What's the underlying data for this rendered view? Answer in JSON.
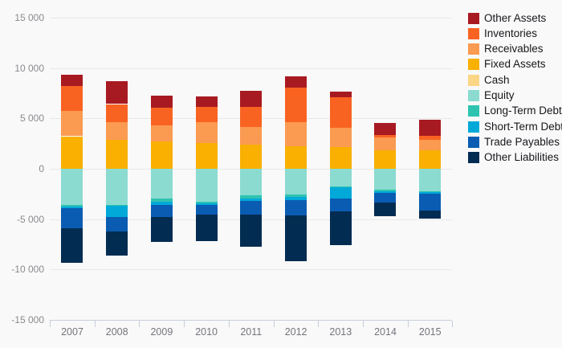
{
  "chart_data": {
    "type": "bar",
    "variant": "diverging-stacked-column",
    "title": "",
    "xlabel": "",
    "ylabel": "",
    "ylim": [
      -15000,
      15000
    ],
    "grid": true,
    "legend_position": "right",
    "categories": [
      "2007",
      "2008",
      "2009",
      "2010",
      "2011",
      "2012",
      "2013",
      "2014",
      "2015"
    ],
    "yticks": [
      {
        "label": "15 000",
        "value": 15000
      },
      {
        "label": "10 000",
        "value": 10000
      },
      {
        "label": "5 000",
        "value": 5000
      },
      {
        "label": "0",
        "value": 0
      },
      {
        "label": "-5 000",
        "value": -5000
      },
      {
        "label": "-10 000",
        "value": -10000
      },
      {
        "label": "-15 000",
        "value": -15000
      }
    ],
    "series": [
      {
        "name": "Other Assets",
        "group": "assets",
        "color": "#a81a21",
        "values": [
          1150,
          2280,
          1200,
          1050,
          1600,
          1110,
          530,
          1170,
          1610
        ]
      },
      {
        "name": "Inventories",
        "group": "assets",
        "color": "#f96322",
        "values": [
          2430,
          1770,
          1810,
          1470,
          2000,
          3400,
          3050,
          260,
          400
        ]
      },
      {
        "name": "Receivables",
        "group": "assets",
        "color": "#fb9a51",
        "values": [
          2540,
          1800,
          1590,
          2120,
          1730,
          2440,
          1910,
          1230,
          990
        ]
      },
      {
        "name": "Fixed Assets",
        "group": "assets",
        "color": "#f9b000",
        "values": [
          3230,
          2850,
          2700,
          2520,
          2390,
          2200,
          2130,
          1850,
          1860
        ]
      },
      {
        "name": "Cash",
        "group": "assets",
        "color": "#fbd687",
        "values": [
          0,
          0,
          0,
          0,
          0,
          0,
          0,
          0,
          0
        ]
      },
      {
        "name": "Equity",
        "group": "liabilities",
        "color": "#8bdbd1",
        "values": [
          -3550,
          -3570,
          -2950,
          -3240,
          -2650,
          -2520,
          -1780,
          -2060,
          -2200
        ]
      },
      {
        "name": "Long-Term Debt",
        "group": "liabilities",
        "color": "#2ec3b0",
        "values": [
          -200,
          -60,
          -320,
          -160,
          -320,
          -260,
          -80,
          -160,
          -140
        ]
      },
      {
        "name": "Short-Term Debt",
        "group": "liabilities",
        "color": "#00a9d8",
        "values": [
          -160,
          -1130,
          -280,
          -210,
          -210,
          -340,
          -1060,
          -140,
          -150
        ]
      },
      {
        "name": "Trade Payables",
        "group": "liabilities",
        "color": "#0a5cb2",
        "values": [
          -1990,
          -1430,
          -1270,
          -910,
          -1380,
          -1510,
          -1320,
          -1000,
          -1650
        ]
      },
      {
        "name": "Other Liabilities",
        "group": "liabilities",
        "color": "#032c52",
        "values": [
          -3440,
          -2460,
          -2430,
          -2640,
          -3140,
          -4520,
          -3360,
          -1350,
          -820
        ]
      }
    ]
  }
}
